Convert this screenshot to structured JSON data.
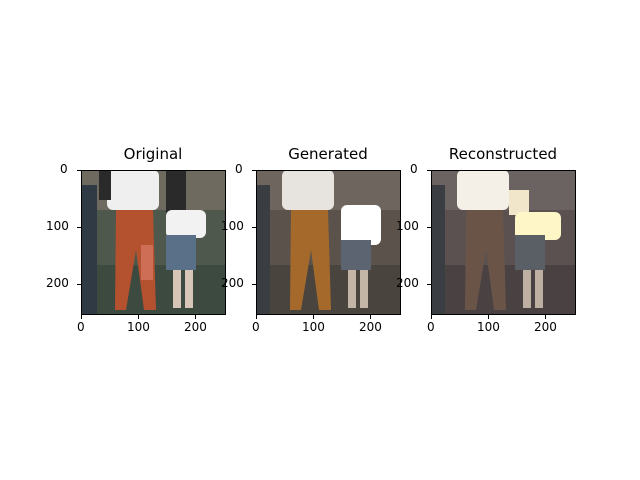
{
  "panels": [
    {
      "title": "Original",
      "type": "image"
    },
    {
      "title": "Generated",
      "type": "image"
    },
    {
      "title": "Reconstructed",
      "type": "image"
    }
  ],
  "axes": {
    "x_ticks": [
      "0",
      "100",
      "200"
    ],
    "y_ticks": [
      "0",
      "100",
      "200"
    ]
  }
}
